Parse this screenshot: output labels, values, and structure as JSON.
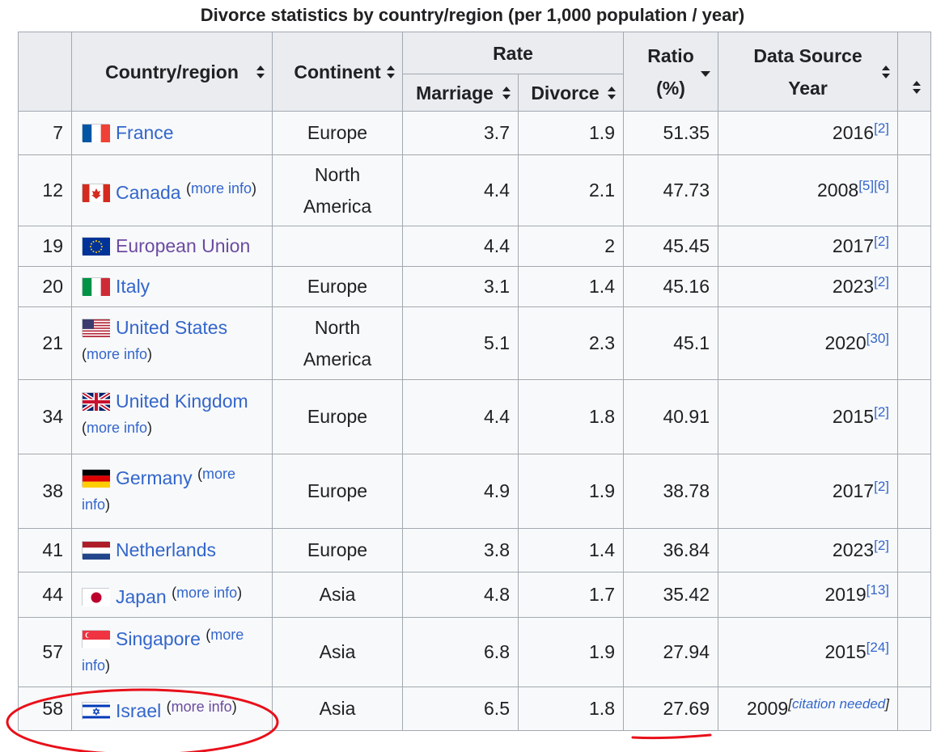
{
  "caption": "Divorce statistics by country/region (per 1,000 population / year)",
  "header": {
    "country": "Country/region",
    "continent": "Continent",
    "rate": "Rate",
    "marriage": "Marriage",
    "divorce": "Divorce",
    "ratio_line1": "Ratio",
    "ratio_line2": "(%)",
    "source_line1": "Data Source",
    "source_line2": "Year"
  },
  "more_info": "(more info)",
  "rows": [
    {
      "rank": "7",
      "country": "France",
      "flag": "france-flag-icon",
      "more": false,
      "continent": "Europe",
      "marriage": "3.7",
      "divorce": "1.9",
      "ratio": "51.35",
      "year": "2016",
      "refs": "[2]"
    },
    {
      "rank": "12",
      "country": "Canada",
      "flag": "canada-flag-icon",
      "more": true,
      "continent": "North America",
      "marriage": "4.4",
      "divorce": "2.1",
      "ratio": "47.73",
      "year": "2008",
      "refs": "[5][6]"
    },
    {
      "rank": "19",
      "country": "European Union",
      "flag": "eu-flag-icon",
      "more": false,
      "continent": "",
      "marriage": "4.4",
      "divorce": "2",
      "ratio": "45.45",
      "year": "2017",
      "refs": "[2]"
    },
    {
      "rank": "20",
      "country": "Italy",
      "flag": "italy-flag-icon",
      "more": false,
      "continent": "Europe",
      "marriage": "3.1",
      "divorce": "1.4",
      "ratio": "45.16",
      "year": "2023",
      "refs": "[2]"
    },
    {
      "rank": "21",
      "country": "United States",
      "flag": "usa-flag-icon",
      "more": true,
      "continent": "North America",
      "marriage": "5.1",
      "divorce": "2.3",
      "ratio": "45.1",
      "year": "2020",
      "refs": "[30]"
    },
    {
      "rank": "34",
      "country": "United Kingdom",
      "flag": "uk-flag-icon",
      "more": true,
      "continent": "Europe",
      "marriage": "4.4",
      "divorce": "1.8",
      "ratio": "40.91",
      "year": "2015",
      "refs": "[2]"
    },
    {
      "rank": "38",
      "country": "Germany",
      "flag": "germany-flag-icon",
      "more": true,
      "continent": "Europe",
      "marriage": "4.9",
      "divorce": "1.9",
      "ratio": "38.78",
      "year": "2017",
      "refs": "[2]"
    },
    {
      "rank": "41",
      "country": "Netherlands",
      "flag": "netherlands-flag-icon",
      "more": false,
      "continent": "Europe",
      "marriage": "3.8",
      "divorce": "1.4",
      "ratio": "36.84",
      "year": "2023",
      "refs": "[2]"
    },
    {
      "rank": "44",
      "country": "Japan",
      "flag": "japan-flag-icon",
      "more": true,
      "continent": "Asia",
      "marriage": "4.8",
      "divorce": "1.7",
      "ratio": "35.42",
      "year": "2019",
      "refs": "[13]"
    },
    {
      "rank": "57",
      "country": "Singapore",
      "flag": "singapore-flag-icon",
      "more": true,
      "continent": "Asia",
      "marriage": "6.8",
      "divorce": "1.9",
      "ratio": "27.94",
      "year": "2015",
      "refs": "[24]"
    },
    {
      "rank": "58",
      "country": "Israel",
      "flag": "israel-flag-icon",
      "more": true,
      "continent": "Asia",
      "marriage": "6.5",
      "divorce": "1.8",
      "ratio": "27.69",
      "year": "2009",
      "refs": "",
      "citation": "citation needed"
    }
  ],
  "colors": {
    "link": "#3366cc",
    "visited_link": "#6b4ba1",
    "annotation": "#e8101a",
    "header_bg": "#eaecf0"
  }
}
